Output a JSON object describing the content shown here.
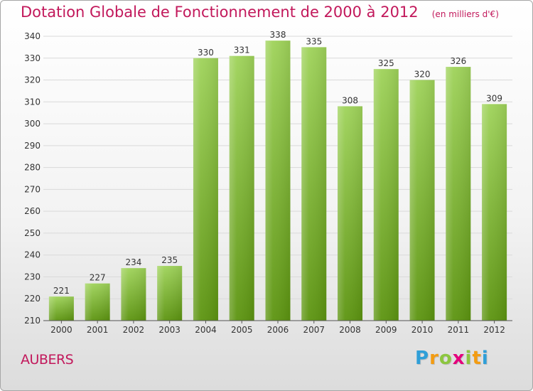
{
  "header": {
    "title": "Dotation Globale de Fonctionnement de 2000 à 2012",
    "unit": "(en milliers d'€)"
  },
  "commune": "AUBERS",
  "logo": {
    "text": "Proxiti",
    "letter_colors": [
      "#2f9fd8",
      "#f39c12",
      "#8cc63f",
      "#e4007c",
      "#8cc63f",
      "#f39c12",
      "#2f9fd8"
    ]
  },
  "colors": {
    "bar_light": "#9fd35a",
    "bar_dark": "#5c9410",
    "title": "#c2185b",
    "grid": "#d9d9d9",
    "axis": "#555555"
  },
  "chart_data": {
    "type": "bar",
    "title": "Dotation Globale de Fonctionnement de 2000 à 2012",
    "subtitle": "(en milliers d'€)",
    "categories": [
      "2000",
      "2001",
      "2002",
      "2003",
      "2004",
      "2005",
      "2006",
      "2007",
      "2008",
      "2009",
      "2010",
      "2011",
      "2012"
    ],
    "values": [
      221,
      227,
      234,
      235,
      330,
      331,
      338,
      335,
      308,
      325,
      320,
      326,
      309
    ],
    "ylim": [
      210,
      340
    ],
    "yticks": [
      210,
      220,
      230,
      240,
      250,
      260,
      270,
      280,
      290,
      300,
      310,
      320,
      330,
      340
    ],
    "grid": true,
    "data_labels": true
  }
}
